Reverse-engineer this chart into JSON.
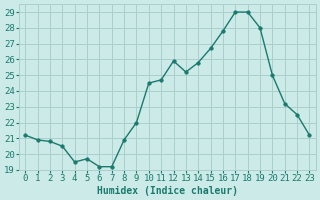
{
  "x": [
    0,
    1,
    2,
    3,
    4,
    5,
    6,
    7,
    8,
    9,
    10,
    11,
    12,
    13,
    14,
    15,
    16,
    17,
    18,
    19,
    20,
    21,
    22,
    23
  ],
  "y": [
    21.2,
    20.9,
    20.8,
    20.5,
    19.5,
    19.7,
    19.2,
    19.2,
    20.9,
    22.0,
    24.5,
    24.7,
    25.9,
    25.2,
    25.8,
    26.7,
    27.8,
    29.0,
    29.0,
    28.0,
    25.0,
    23.2,
    22.5,
    21.2
  ],
  "line_color": "#1a7a6e",
  "marker": "o",
  "markersize": 2.5,
  "linewidth": 1.0,
  "bg_color": "#cceae7",
  "grid_color": "#aacfcc",
  "xlabel": "Humidex (Indice chaleur)",
  "xlim": [
    -0.5,
    23.5
  ],
  "ylim": [
    19,
    29.5
  ],
  "yticks": [
    19,
    20,
    21,
    22,
    23,
    24,
    25,
    26,
    27,
    28,
    29
  ],
  "xticks": [
    0,
    1,
    2,
    3,
    4,
    5,
    6,
    7,
    8,
    9,
    10,
    11,
    12,
    13,
    14,
    15,
    16,
    17,
    18,
    19,
    20,
    21,
    22,
    23
  ],
  "tick_color": "#1a7a6e",
  "label_color": "#1a7a6e",
  "xlabel_fontsize": 7,
  "tick_fontsize": 6.5
}
